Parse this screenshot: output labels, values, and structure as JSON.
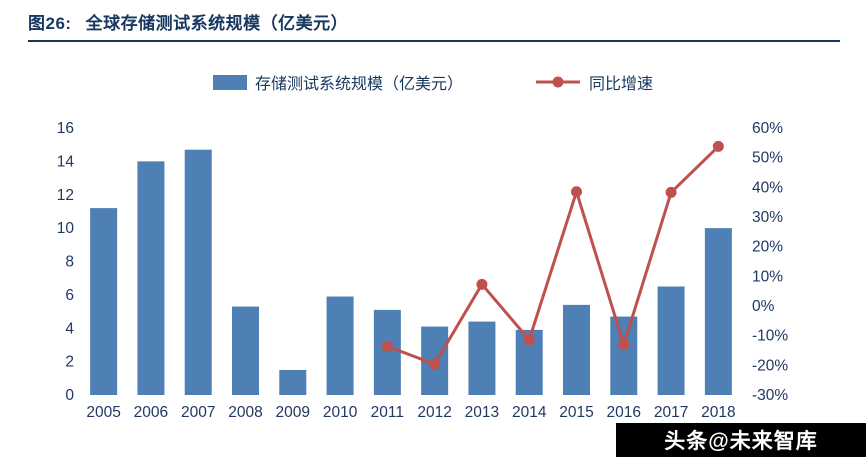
{
  "header": {
    "title_prefix": "图26:",
    "title": "全球存储测试系统规模（亿美元）"
  },
  "legend": {
    "bars_label": "存储测试系统规模（亿美元）",
    "line_label": "同比增速"
  },
  "watermark": "头条@未来智库",
  "colors": {
    "bar": "#4E7FB5",
    "line": "#C0504D",
    "title": "#17375E",
    "axis_text": "#1F3864",
    "watermark_bg": "#000000",
    "watermark_text": "#FFFFFF"
  },
  "chart_data": {
    "type": "bar+line",
    "title": "全球存储测试系统规模（亿美元）",
    "categories": [
      "2005",
      "2006",
      "2007",
      "2008",
      "2009",
      "2010",
      "2011",
      "2012",
      "2013",
      "2014",
      "2015",
      "2016",
      "2017",
      "2018"
    ],
    "series": [
      {
        "name": "存储测试系统规模（亿美元）",
        "type": "bar",
        "axis": "left",
        "values": [
          11.2,
          14.0,
          14.7,
          5.3,
          1.5,
          5.9,
          5.1,
          4.1,
          4.4,
          3.9,
          5.4,
          4.7,
          6.5,
          10.0
        ]
      },
      {
        "name": "同比增速",
        "type": "line",
        "axis": "right",
        "values": [
          null,
          null,
          null,
          null,
          null,
          null,
          -13.6,
          -19.6,
          7.3,
          -11.4,
          38.5,
          -13.0,
          38.3,
          53.8
        ]
      }
    ],
    "left_axis": {
      "min": 0,
      "max": 16,
      "step": 2
    },
    "right_axis": {
      "min": -30,
      "max": 60,
      "step": 10,
      "suffix": "%"
    },
    "grid": false,
    "legend_position": "top"
  }
}
